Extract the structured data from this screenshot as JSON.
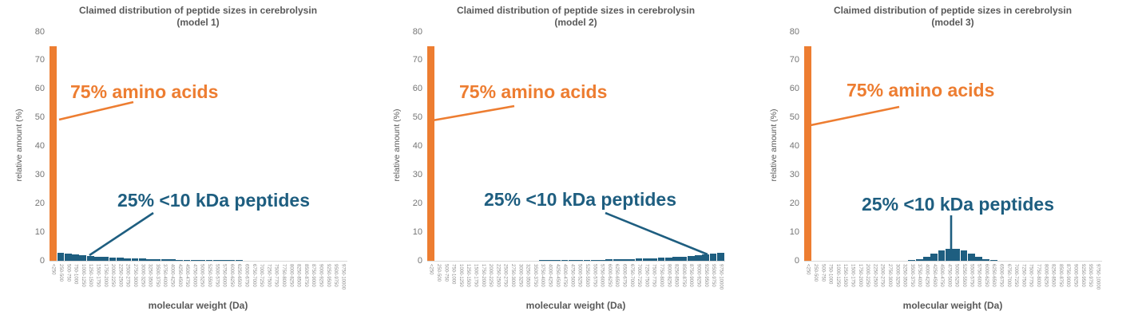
{
  "colors": {
    "amino_orange": "#ED7D31",
    "peptide_blue": "#1E5E80",
    "title_gray": "#595959",
    "ytick_gray": "#757575",
    "xtick_gray": "#8C8C8C",
    "axis_line_gray": "#D9D9D9"
  },
  "chart_data": [
    {
      "type": "bar",
      "title": "Claimed distribution of peptide sizes in cerebrolysin",
      "subtitle": "(model 1)",
      "xlabel": "molecular weight (Da)",
      "ylabel": "relative amount (%)",
      "ylim": [
        0,
        80
      ],
      "yticks": [
        0,
        10,
        20,
        30,
        40,
        50,
        60,
        70,
        80
      ],
      "grid": false,
      "legend": false,
      "annotations": {
        "amino": "75% amino acids",
        "peptide": "25% <10 kDa peptides"
      },
      "categories": [
        "<250",
        "250-500",
        "500-750",
        "750-1000",
        "1000-1250",
        "1250-1500",
        "1500-1750",
        "1750-2000",
        "2000-2250",
        "2250-2500",
        "2500-2750",
        "2750-3000",
        "3000-3250",
        "3250-3500",
        "3500-3750",
        "3750-4000",
        "4000-4250",
        "4250-4500",
        "4500-4750",
        "4750-5000",
        "5000-5250",
        "5250-5500",
        "5500-5750",
        "5750-6000",
        "6000-6250",
        "6250-6500",
        "6500-6750",
        "6750-7000",
        "7000-7250",
        "7250-7500",
        "7500-7750",
        "7750-8000",
        "8000-8250",
        "8250-8500",
        "8500-8750",
        "8750-9000",
        "9000-9250",
        "9250-9500",
        "9500-9750",
        "9750-10000"
      ],
      "values": [
        75,
        2.75,
        2.43,
        2.15,
        1.91,
        1.69,
        1.49,
        1.32,
        1.17,
        1.04,
        0.92,
        0.81,
        0.72,
        0.64,
        0.56,
        0.5,
        0.44,
        0.39,
        0.35,
        0.31,
        0.27,
        0.24,
        0.21,
        0.19,
        0.17,
        0.15,
        0.13,
        0.12,
        0.1,
        0.09,
        0.08,
        0.07,
        0.06,
        0.06,
        0.05,
        0.04,
        0.04,
        0.03,
        0.03,
        0.03
      ]
    },
    {
      "type": "bar",
      "title": "Claimed distribution of peptide sizes in cerebrolysin",
      "subtitle": "(model 2)",
      "xlabel": "molecular weight (Da)",
      "ylabel": "relative amount (%)",
      "ylim": [
        0,
        80
      ],
      "yticks": [
        0,
        10,
        20,
        30,
        40,
        50,
        60,
        70,
        80
      ],
      "grid": false,
      "legend": false,
      "annotations": {
        "amino": "75% amino acids",
        "peptide": "25% <10 kDa peptides"
      },
      "categories": [
        "<250",
        "250-500",
        "500-750",
        "750-1000",
        "1000-1250",
        "1250-1500",
        "1500-1750",
        "1750-2000",
        "2000-2250",
        "2250-2500",
        "2500-2750",
        "2750-3000",
        "3000-3250",
        "3250-3500",
        "3500-3750",
        "3750-4000",
        "4000-4250",
        "4250-4500",
        "4500-4750",
        "4750-5000",
        "5000-5250",
        "5250-5500",
        "5500-5750",
        "5750-6000",
        "6000-6250",
        "6250-6500",
        "6500-6750",
        "6750-7000",
        "7000-7250",
        "7250-7500",
        "7500-7750",
        "7750-8000",
        "8000-8250",
        "8250-8500",
        "8500-8750",
        "8750-9000",
        "9000-9250",
        "9250-9500",
        "9500-9750",
        "9750-10000"
      ],
      "values": [
        75,
        0.03,
        0.03,
        0.03,
        0.04,
        0.04,
        0.05,
        0.06,
        0.06,
        0.07,
        0.08,
        0.09,
        0.1,
        0.12,
        0.13,
        0.15,
        0.17,
        0.19,
        0.21,
        0.24,
        0.27,
        0.31,
        0.35,
        0.39,
        0.44,
        0.5,
        0.56,
        0.64,
        0.72,
        0.81,
        0.92,
        1.04,
        1.17,
        1.32,
        1.49,
        1.69,
        1.91,
        2.15,
        2.43,
        2.75
      ]
    },
    {
      "type": "bar",
      "title": "Claimed distribution of peptide sizes in cerebrolysin",
      "subtitle": "(model 3)",
      "xlabel": "molecular weight (Da)",
      "ylabel": "relative amount (%)",
      "ylim": [
        0,
        80
      ],
      "yticks": [
        0,
        10,
        20,
        30,
        40,
        50,
        60,
        70,
        80
      ],
      "grid": false,
      "legend": false,
      "annotations": {
        "amino": "75% amino acids",
        "peptide": "25% <10 kDa peptides"
      },
      "categories": [
        "<250",
        "250-500",
        "500-750",
        "750-1000",
        "1000-1250",
        "1250-1500",
        "1500-1750",
        "1750-2000",
        "2000-2250",
        "2250-2500",
        "2500-2750",
        "2750-3000",
        "3000-3250",
        "3250-3500",
        "3500-3750",
        "3750-4000",
        "4000-4250",
        "4250-4500",
        "4500-4750",
        "4750-5000",
        "5000-5250",
        "5250-5500",
        "5500-5750",
        "5750-6000",
        "6000-6250",
        "6250-6500",
        "6500-6750",
        "6750-7000",
        "7000-7250",
        "7250-7500",
        "7500-7750",
        "7750-8000",
        "8000-8250",
        "8250-8500",
        "8500-8750",
        "8750-9000",
        "9000-9250",
        "9250-9500",
        "9500-9750",
        "9750-10000"
      ],
      "values": [
        75,
        0,
        0,
        0,
        0,
        0,
        0,
        0,
        0,
        0,
        0,
        0,
        0.02,
        0.09,
        0.26,
        0.66,
        1.38,
        2.41,
        3.49,
        4.2,
        4.2,
        3.49,
        2.41,
        1.38,
        0.66,
        0.26,
        0.09,
        0.02,
        0,
        0,
        0,
        0,
        0,
        0,
        0,
        0,
        0,
        0,
        0,
        0
      ]
    }
  ]
}
